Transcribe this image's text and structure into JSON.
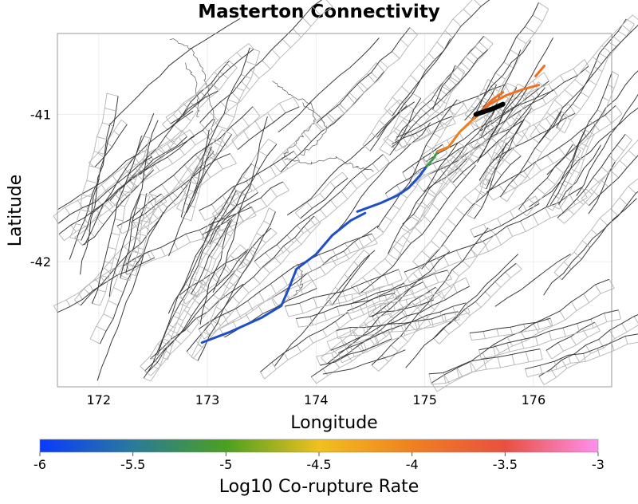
{
  "chart_data": {
    "type": "map",
    "title": "Masterton Connectivity",
    "xlabel": "Longitude",
    "ylabel": "Latitude",
    "xlim": [
      171.62,
      176.72
    ],
    "ylim": [
      -42.85,
      -40.45
    ],
    "x_ticks": [
      172,
      173,
      174,
      175,
      176
    ],
    "y_ticks": [
      -41,
      -42
    ],
    "grid": true,
    "colorbar": {
      "label": "Log10 Co-rupture Rate",
      "min": -6,
      "max": -3,
      "ticks": [
        "-6",
        "-5.5",
        "-5",
        "-4.5",
        "-4",
        "-3.5",
        "-3"
      ],
      "colors": [
        "#0a3aff",
        "#2a7a9a",
        "#4aa020",
        "#f0c020",
        "#f08020",
        "#e85040",
        "#ff90ee"
      ]
    },
    "highlighted_ruptures": [
      {
        "log10_rate": -5.95,
        "color": "#1f4fc8",
        "points": [
          [
            172.95,
            -42.55
          ],
          [
            173.2,
            -42.48
          ],
          [
            173.5,
            -42.38
          ],
          [
            173.68,
            -42.3
          ],
          [
            173.75,
            -42.18
          ],
          [
            173.82,
            -42.05
          ],
          [
            174.0,
            -41.95
          ],
          [
            174.15,
            -41.82
          ],
          [
            174.32,
            -41.72
          ],
          [
            174.45,
            -41.67
          ]
        ]
      },
      {
        "log10_rate": -5.95,
        "color": "#1f4fc8",
        "points": [
          [
            174.38,
            -41.66
          ],
          [
            174.6,
            -41.6
          ],
          [
            174.75,
            -41.55
          ],
          [
            174.85,
            -41.5
          ],
          [
            174.95,
            -41.42
          ],
          [
            175.02,
            -41.35
          ]
        ]
      },
      {
        "log10_rate": -5.2,
        "color": "#3aa04a",
        "points": [
          [
            175.02,
            -41.35
          ],
          [
            175.08,
            -41.3
          ],
          [
            175.12,
            -41.25
          ]
        ]
      },
      {
        "log10_rate": -4.1,
        "color": "#f08020",
        "points": [
          [
            175.12,
            -41.25
          ],
          [
            175.22,
            -41.22
          ],
          [
            175.32,
            -41.12
          ],
          [
            175.42,
            -41.05
          ],
          [
            175.5,
            -41.0
          ]
        ]
      },
      {
        "log10_rate": -3.9,
        "color": "#f07020",
        "points": [
          [
            175.5,
            -40.99
          ],
          [
            175.6,
            -40.93
          ],
          [
            175.75,
            -40.87
          ],
          [
            175.9,
            -40.83
          ],
          [
            176.05,
            -40.8
          ]
        ]
      },
      {
        "log10_rate": -3.9,
        "color": "#f07020",
        "points": [
          [
            176.02,
            -40.74
          ],
          [
            176.1,
            -40.67
          ]
        ]
      },
      {
        "log10_rate": -3.9,
        "color": "#f07020",
        "points": [
          [
            175.52,
            -40.98
          ],
          [
            175.62,
            -40.9
          ],
          [
            175.72,
            -40.85
          ]
        ]
      },
      {
        "log10_rate": -3.0,
        "color": "#000000",
        "points": [
          [
            175.47,
            -41.0
          ],
          [
            175.55,
            -40.98
          ],
          [
            175.63,
            -40.96
          ],
          [
            175.72,
            -40.93
          ]
        ]
      }
    ]
  }
}
